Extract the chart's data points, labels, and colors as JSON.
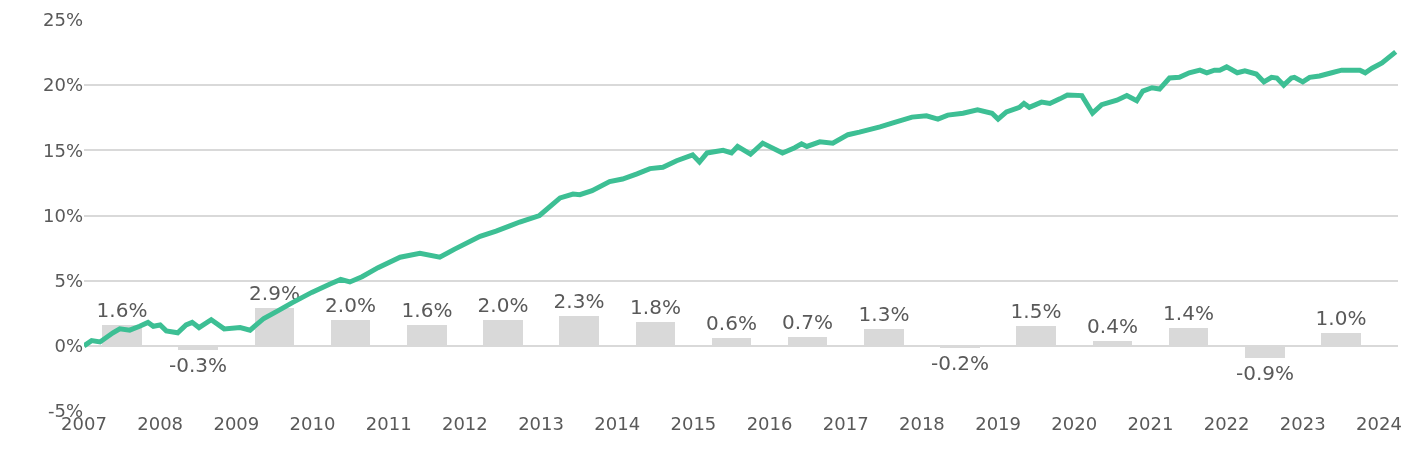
{
  "chart_data": {
    "type": "line",
    "xlim": [
      2007,
      2024.25
    ],
    "ylim": [
      -5,
      25
    ],
    "xticks": [
      2007,
      2008,
      2009,
      2010,
      2011,
      2012,
      2013,
      2014,
      2015,
      2016,
      2017,
      2018,
      2019,
      2020,
      2021,
      2022,
      2023,
      2024
    ],
    "yticks": [
      {
        "value": -5,
        "label": "-5%"
      },
      {
        "value": 0,
        "label": "0%"
      },
      {
        "value": 5,
        "label": "5%"
      },
      {
        "value": 10,
        "label": "10%"
      },
      {
        "value": 15,
        "label": "15%"
      },
      {
        "value": 20,
        "label": "20%"
      },
      {
        "value": 25,
        "label": "25%"
      }
    ],
    "grid": "y",
    "marker": "none",
    "line_style": "solid",
    "series": [
      {
        "type": "bar",
        "color": "#d9d9d9",
        "x": [
          2007.5,
          2008.5,
          2009.5,
          2010.5,
          2011.5,
          2012.5,
          2013.5,
          2014.5,
          2015.5,
          2016.5,
          2017.5,
          2018.5,
          2019.5,
          2020.5,
          2021.5,
          2022.5,
          2023.5
        ],
        "values": [
          1.6,
          -0.3,
          2.9,
          2.0,
          1.6,
          2.0,
          2.3,
          1.8,
          0.6,
          0.7,
          1.3,
          -0.2,
          1.5,
          0.4,
          1.4,
          -0.9,
          1.0
        ],
        "value_labels": [
          "1.6%",
          "-0.3%",
          "2.9%",
          "2.0%",
          "1.6%",
          "2.0%",
          "2.3%",
          "1.8%",
          "0.6%",
          "0.7%",
          "1.3%",
          "-0.2%",
          "1.5%",
          "0.4%",
          "1.4%",
          "-0.9%",
          "1.0%"
        ]
      },
      {
        "color": "#3dbf94",
        "x": [
          2007.0,
          2007.1,
          2007.21,
          2007.38,
          2007.47,
          2007.6,
          2007.73,
          2007.84,
          2007.91,
          2008.0,
          2008.08,
          2008.23,
          2008.34,
          2008.42,
          2008.51,
          2008.67,
          2008.84,
          2009.05,
          2009.18,
          2009.36,
          2009.55,
          2009.73,
          2009.99,
          2010.23,
          2010.37,
          2010.49,
          2010.65,
          2010.86,
          2011.15,
          2011.41,
          2011.67,
          2011.86,
          2012.2,
          2012.41,
          2012.59,
          2012.72,
          2012.98,
          2013.25,
          2013.42,
          2013.51,
          2013.67,
          2013.9,
          2014.07,
          2014.26,
          2014.43,
          2014.6,
          2014.78,
          2014.99,
          2015.08,
          2015.18,
          2015.39,
          2015.5,
          2015.58,
          2015.75,
          2015.91,
          2016.17,
          2016.33,
          2016.42,
          2016.49,
          2016.66,
          2016.83,
          2017.03,
          2017.18,
          2017.45,
          2017.62,
          2017.87,
          2018.06,
          2018.21,
          2018.34,
          2018.54,
          2018.73,
          2018.92,
          2019.0,
          2019.11,
          2019.28,
          2019.34,
          2019.41,
          2019.57,
          2019.68,
          2019.81,
          2019.91,
          2020.1,
          2020.24,
          2020.36,
          2020.56,
          2020.69,
          2020.82,
          2020.9,
          2021.02,
          2021.12,
          2021.25,
          2021.38,
          2021.51,
          2021.65,
          2021.74,
          2021.84,
          2021.91,
          2022.0,
          2022.14,
          2022.24,
          2022.39,
          2022.49,
          2022.59,
          2022.66,
          2022.75,
          2022.85,
          2022.89,
          2023.0,
          2023.09,
          2023.22,
          2023.38,
          2023.51,
          2023.75,
          2023.82,
          2023.91,
          2024.04,
          2024.22
        ],
        "values": [
          0,
          0.4,
          0.3,
          1.0,
          1.3,
          1.2,
          1.5,
          1.8,
          1.5,
          1.6,
          1.15,
          1.0,
          1.6,
          1.8,
          1.4,
          2.0,
          1.3,
          1.4,
          1.2,
          2.1,
          2.7,
          3.3,
          4.1,
          4.75,
          5.1,
          4.9,
          5.3,
          6.0,
          6.8,
          7.1,
          6.8,
          7.4,
          8.4,
          8.8,
          9.2,
          9.5,
          10.0,
          11.35,
          11.65,
          11.6,
          11.9,
          12.6,
          12.8,
          13.2,
          13.6,
          13.7,
          14.2,
          14.65,
          14.1,
          14.8,
          15.0,
          14.8,
          15.3,
          14.7,
          15.55,
          14.8,
          15.2,
          15.5,
          15.3,
          15.65,
          15.55,
          16.2,
          16.4,
          16.8,
          17.1,
          17.55,
          17.65,
          17.4,
          17.7,
          17.85,
          18.1,
          17.85,
          17.4,
          17.95,
          18.3,
          18.6,
          18.3,
          18.7,
          18.6,
          18.95,
          19.25,
          19.2,
          17.85,
          18.5,
          18.85,
          19.2,
          18.8,
          19.55,
          19.8,
          19.7,
          20.55,
          20.6,
          20.95,
          21.15,
          20.95,
          21.15,
          21.15,
          21.4,
          20.95,
          21.1,
          20.85,
          20.25,
          20.6,
          20.55,
          20.0,
          20.55,
          20.6,
          20.25,
          20.6,
          20.7,
          20.95,
          21.15,
          21.15,
          20.95,
          21.3,
          21.7,
          22.55
        ]
      }
    ]
  }
}
